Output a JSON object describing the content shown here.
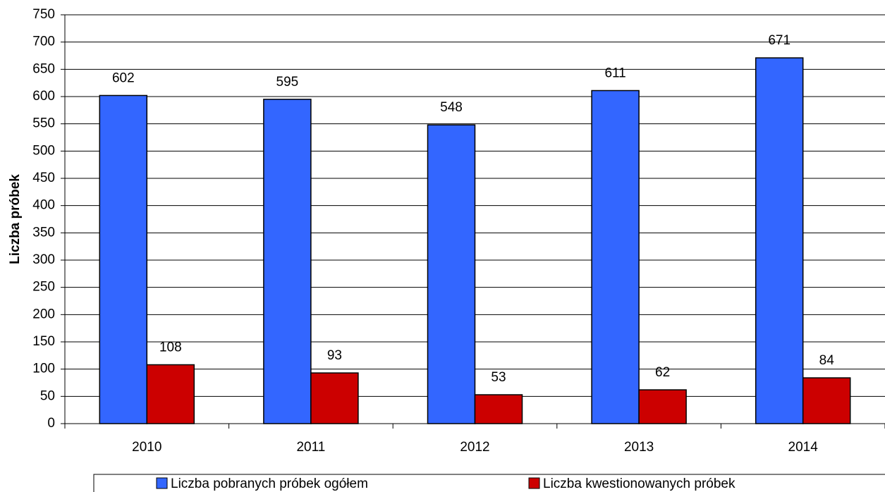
{
  "chart_data": {
    "type": "bar",
    "y_label": "Liczba próbek",
    "categories": [
      "2010",
      "2011",
      "2012",
      "2013",
      "2014"
    ],
    "series": [
      {
        "name": "Liczba pobranych próbek ogółem",
        "color": "#3366ff",
        "values": [
          602,
          595,
          548,
          611,
          671
        ]
      },
      {
        "name": "Liczba kwestionowanych próbek",
        "color": "#cc0000",
        "values": [
          108,
          93,
          53,
          62,
          84
        ]
      }
    ],
    "ylim": [
      0,
      750
    ],
    "yticks": [
      0,
      50,
      100,
      150,
      200,
      250,
      300,
      350,
      400,
      450,
      500,
      550,
      600,
      650,
      700,
      750
    ],
    "grid": true,
    "legend": "bottom"
  }
}
